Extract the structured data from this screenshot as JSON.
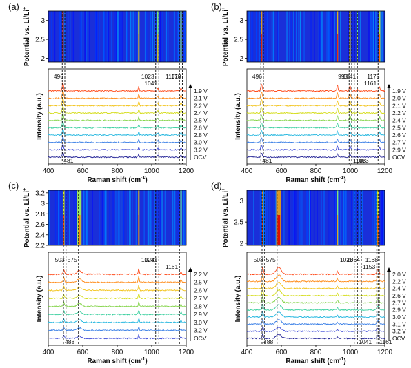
{
  "figure": {
    "yaxis_potential": "Potential vs. Li/Li",
    "superscript_plus": "+"
  },
  "chart_data": [
    {
      "panel": "(a)",
      "type": "line",
      "heatmap_ticks": [
        "3",
        "2.5",
        "2"
      ],
      "heatmap_ylim": [
        1.9,
        3.25
      ],
      "x_ticks": [
        "400",
        "600",
        "800",
        "1000",
        "1200"
      ],
      "xlim": [
        400,
        1200
      ],
      "xlabel": "Raman shift (cm",
      "xlabel_sup": "-1",
      "xlabel_end": ")",
      "ylabel": "Intensity (a.u.)",
      "potentials": [
        "1.9 V",
        "2.1 V",
        "2.2 V",
        "2.4 V",
        "2.5 V",
        "2.6 V",
        "2.8 V",
        "3.0 V",
        "3.2 V",
        "OCV"
      ],
      "peaks": [
        {
          "x": 481,
          "label": "481",
          "label_pos": "bottom"
        },
        {
          "x": 496,
          "label": "496",
          "label_pos": "top"
        },
        {
          "x": 1023,
          "label": "1023",
          "label_pos": "top"
        },
        {
          "x": 1041,
          "label": "1041",
          "label_pos": "mid"
        },
        {
          "x": 1161,
          "label": "1161",
          "label_pos": "top"
        },
        {
          "x": 1178,
          "label": "1178",
          "label_pos": "top"
        }
      ],
      "spectral_bands": [
        {
          "x": 485,
          "height": 1.0,
          "width": 8
        },
        {
          "x": 925,
          "height": 0.55,
          "width": 5
        },
        {
          "x": 1035,
          "height": 0.35,
          "width": 5
        },
        {
          "x": 1170,
          "height": 0.45,
          "width": 6
        }
      ]
    },
    {
      "panel": "(b)",
      "type": "line",
      "heatmap_ticks": [
        "3",
        "2.5",
        "2"
      ],
      "heatmap_ylim": [
        1.9,
        3.25
      ],
      "x_ticks": [
        "400",
        "600",
        "800",
        "1000",
        "1200"
      ],
      "xlim": [
        400,
        1200
      ],
      "xlabel": "Raman shift (cm",
      "xlabel_sup": "-1",
      "xlabel_end": ")",
      "ylabel": "Intensity (a.u.)",
      "potentials": [
        "1.9 V",
        "2.0 V",
        "2.1 V",
        "2.2 V",
        "2.4 V",
        "2.5 V",
        "2.6 V",
        "2.7 V",
        "2.9 V",
        "OCV"
      ],
      "peaks": [
        {
          "x": 481,
          "label": "481",
          "label_pos": "bottom"
        },
        {
          "x": 496,
          "label": "496",
          "label_pos": "top"
        },
        {
          "x": 993,
          "label": "993",
          "label_pos": "top"
        },
        {
          "x": 1008,
          "label": "1008",
          "label_pos": "bottom"
        },
        {
          "x": 1023,
          "label": "1023",
          "label_pos": "bottom"
        },
        {
          "x": 1041,
          "label": "1041",
          "label_pos": "top"
        },
        {
          "x": 1161,
          "label": "1161",
          "label_pos": "mid"
        },
        {
          "x": 1178,
          "label": "1178",
          "label_pos": "top"
        }
      ],
      "spectral_bands": [
        {
          "x": 485,
          "height": 0.8,
          "width": 8
        },
        {
          "x": 925,
          "height": 0.75,
          "width": 6
        },
        {
          "x": 998,
          "height": 0.65,
          "width": 8
        },
        {
          "x": 1040,
          "height": 0.3,
          "width": 5
        },
        {
          "x": 1170,
          "height": 0.5,
          "width": 6
        }
      ]
    },
    {
      "panel": "(c)",
      "type": "line",
      "heatmap_ticks": [
        "3.2",
        "3",
        "2.8",
        "2.6",
        "2.4",
        "2.2"
      ],
      "heatmap_ylim": [
        2.2,
        3.25
      ],
      "x_ticks": [
        "400",
        "600",
        "800",
        "1000",
        "1200"
      ],
      "xlim": [
        400,
        1200
      ],
      "xlabel": "Raman shift (cm",
      "xlabel_sup": "-1",
      "xlabel_end": ")",
      "ylabel": "Intensity (a.u.)",
      "potentials": [
        "2.2 V",
        "2.5 V",
        "2.6 V",
        "2.7 V",
        "2.8 V",
        "2.9 V",
        "3.0 V",
        "3.2 V",
        "OCV"
      ],
      "peaks": [
        {
          "x": 488,
          "label": "488",
          "label_pos": "bottom"
        },
        {
          "x": 503,
          "label": "503",
          "label_pos": "top"
        },
        {
          "x": 575,
          "label": "575",
          "label_pos": "top"
        },
        {
          "x": 1023,
          "label": "1023",
          "label_pos": "top"
        },
        {
          "x": 1041,
          "label": "1041",
          "label_pos": "top"
        },
        {
          "x": 1161,
          "label": "1161",
          "label_pos": "mid"
        }
      ],
      "spectral_bands": [
        {
          "x": 490,
          "height": 0.6,
          "width": 8
        },
        {
          "x": 580,
          "height": 0.45,
          "width": 25
        },
        {
          "x": 925,
          "height": 0.7,
          "width": 5
        },
        {
          "x": 1170,
          "height": 0.35,
          "width": 6
        }
      ]
    },
    {
      "panel": "(d)",
      "type": "line",
      "heatmap_ticks": [
        "3",
        "2.5",
        "2"
      ],
      "heatmap_ylim": [
        1.95,
        3.25
      ],
      "x_ticks": [
        "400",
        "600",
        "800",
        "1000",
        "1200"
      ],
      "xlim": [
        400,
        1200
      ],
      "xlabel": "Raman shift (cm",
      "xlabel_sup": "-1",
      "xlabel_end": ")",
      "ylabel": "Intensity (a.u.)",
      "potentials": [
        "2.0 V",
        "2.2 V",
        "2.4 V",
        "2.6 V",
        "2.7 V",
        "2.9 V",
        "3.0 V",
        "3.1 V",
        "3.2 V",
        "OCV"
      ],
      "peaks": [
        {
          "x": 488,
          "label": "488",
          "label_pos": "bottom"
        },
        {
          "x": 503,
          "label": "503",
          "label_pos": "top"
        },
        {
          "x": 575,
          "label": "575",
          "label_pos": "top"
        },
        {
          "x": 1023,
          "label": "1023",
          "label_pos": "top"
        },
        {
          "x": 1041,
          "label": "1041",
          "label_pos": "bottom"
        },
        {
          "x": 1064,
          "label": "1064",
          "label_pos": "top"
        },
        {
          "x": 1153,
          "label": "1153",
          "label_pos": "mid"
        },
        {
          "x": 1161,
          "label": "1161",
          "label_pos": "bottom"
        },
        {
          "x": 1168,
          "label": "1168",
          "label_pos": "top"
        }
      ],
      "spectral_bands": [
        {
          "x": 492,
          "height": 0.85,
          "width": 8
        },
        {
          "x": 585,
          "height": 0.8,
          "width": 30
        },
        {
          "x": 925,
          "height": 0.4,
          "width": 6
        },
        {
          "x": 1160,
          "height": 0.6,
          "width": 12
        }
      ]
    }
  ]
}
